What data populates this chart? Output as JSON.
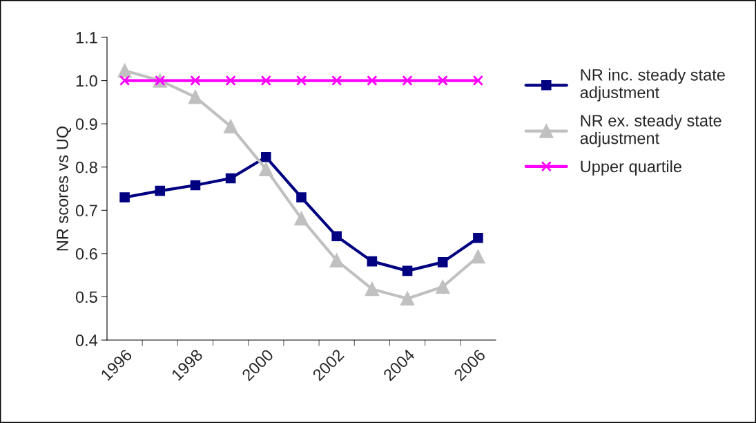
{
  "chart_data": {
    "type": "line",
    "ylabel": "NR scores vs UQ",
    "categories": [
      "1996",
      null,
      "1998",
      null,
      "2000",
      null,
      "2002",
      null,
      "2004",
      null,
      "2006"
    ],
    "series": [
      {
        "name": "NR inc. steady state\nadjustment",
        "color": "#000080",
        "marker": "square",
        "values": [
          0.73,
          0.745,
          0.758,
          0.774,
          0.823,
          0.73,
          0.64,
          0.582,
          0.56,
          0.58,
          0.636
        ]
      },
      {
        "name": "NR ex. steady state\nadjustment",
        "color": "#c0c0c0",
        "marker": "triangle",
        "values": [
          1.023,
          1.0,
          0.962,
          0.894,
          0.795,
          0.681,
          0.584,
          0.518,
          0.496,
          0.523,
          0.593
        ]
      },
      {
        "name": "Upper quartile",
        "color": "#ff00ff",
        "marker": "cross",
        "values": [
          1.0,
          1.0,
          1.0,
          1.0,
          1.0,
          1.0,
          1.0,
          1.0,
          1.0,
          1.0,
          1.0
        ]
      }
    ],
    "ylim": [
      0.4,
      1.1
    ],
    "yticks": [
      {
        "value": 0.4,
        "label": "0.4"
      },
      {
        "value": 0.5,
        "label": "0.5"
      },
      {
        "value": 0.6,
        "label": "0.6"
      },
      {
        "value": 0.7,
        "label": "0.7"
      },
      {
        "value": 0.8,
        "label": "0.8"
      },
      {
        "value": 0.9,
        "label": "0.9"
      },
      {
        "value": 1.0,
        "label": "1.0"
      },
      {
        "value": 1.1,
        "label": "1.1"
      }
    ],
    "grid": false,
    "legend": "right",
    "line_style": "solid"
  }
}
